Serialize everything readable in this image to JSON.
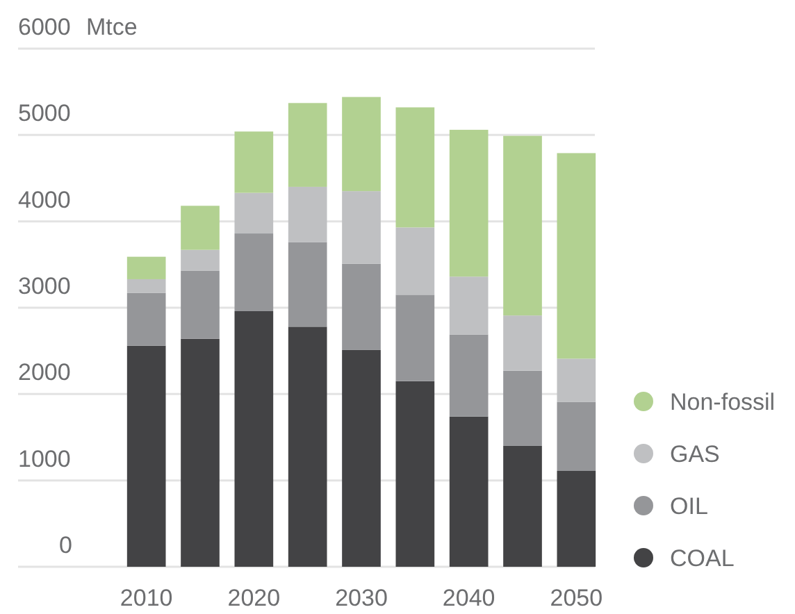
{
  "chart_data": {
    "type": "bar",
    "stacked": true,
    "ylabel": "Mtce",
    "categories": [
      "2010",
      null,
      "2020",
      null,
      "2030",
      null,
      "2040",
      null,
      "2050"
    ],
    "series": [
      {
        "name": "COAL",
        "color": "#434345",
        "values": [
          2560,
          2640,
          2960,
          2780,
          2510,
          2150,
          1740,
          1400,
          1110
        ]
      },
      {
        "name": "OIL",
        "color": "#959699",
        "values": [
          610,
          790,
          900,
          980,
          1000,
          1000,
          950,
          870,
          800
        ]
      },
      {
        "name": "GAS",
        "color": "#bfc0c2",
        "values": [
          160,
          240,
          470,
          640,
          840,
          780,
          670,
          640,
          500
        ]
      },
      {
        "name": "Non-fossil",
        "color": "#b2d191",
        "values": [
          260,
          510,
          710,
          970,
          1090,
          1390,
          1700,
          2080,
          2380
        ]
      }
    ],
    "ylim": [
      0,
      6000
    ],
    "yticks": [
      0,
      1000,
      2000,
      3000,
      4000,
      5000,
      6000
    ],
    "grid": "y",
    "legend": "right"
  }
}
